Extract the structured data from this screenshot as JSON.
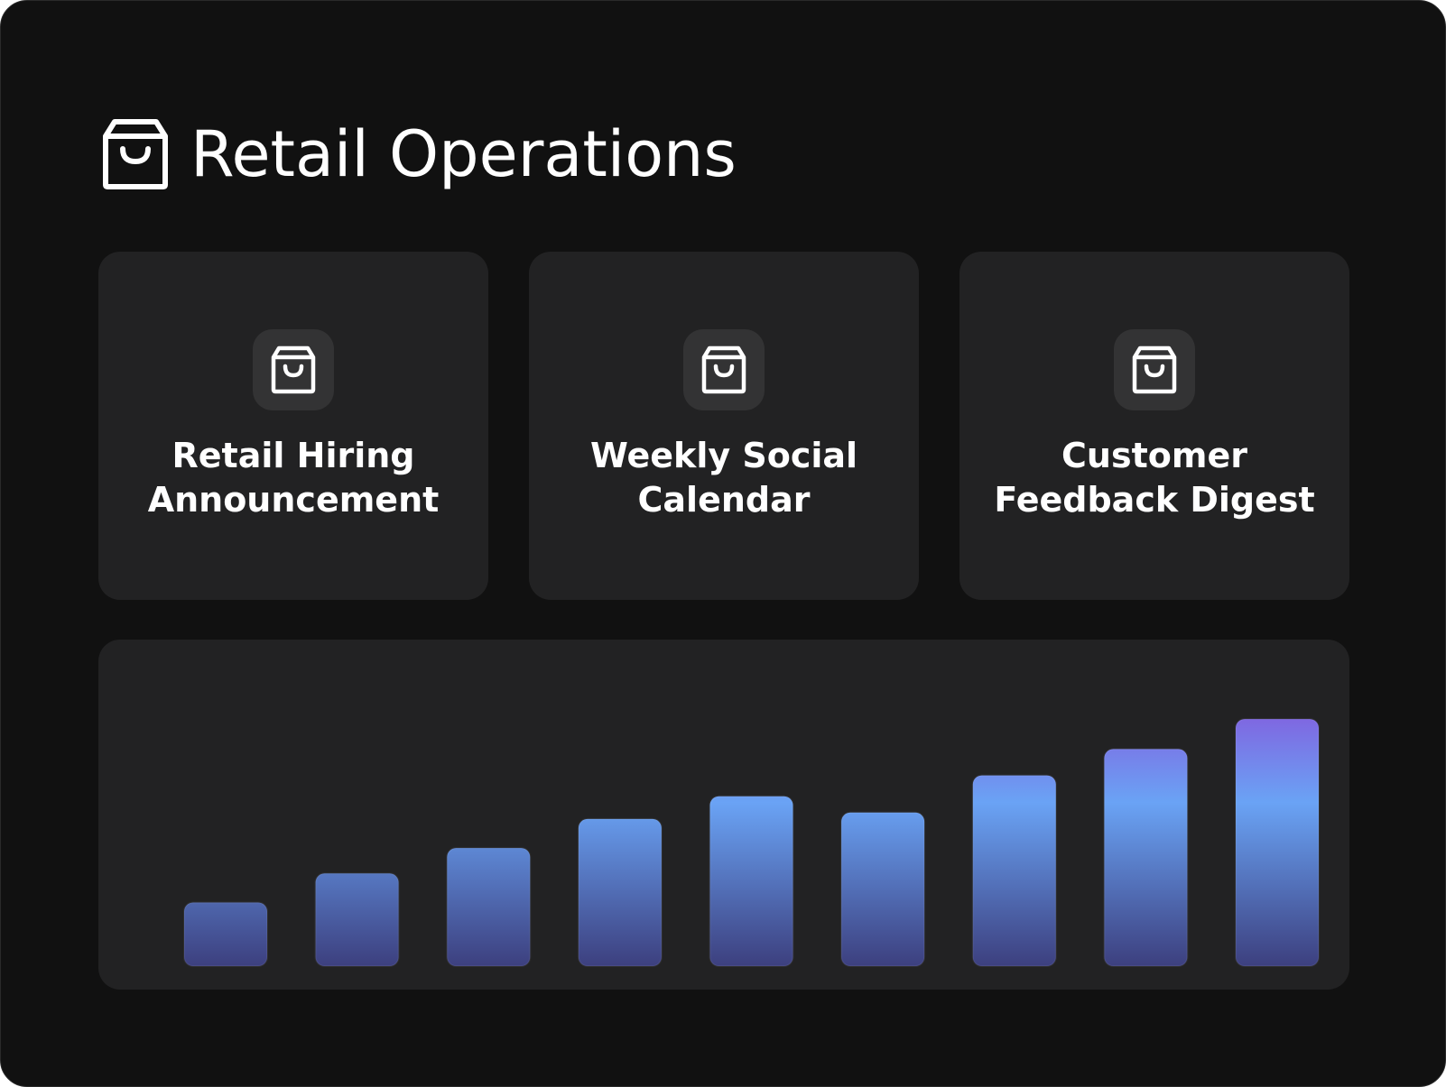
{
  "header": {
    "title": "Retail Operations",
    "icon": "shopping-bag-icon"
  },
  "cards": [
    {
      "label": "Retail Hiring Announcement",
      "icon": "shopping-bag-icon"
    },
    {
      "label": "Weekly Social Calendar",
      "icon": "shopping-bag-icon"
    },
    {
      "label": "Customer Feedback Digest",
      "icon": "shopping-bag-icon"
    }
  ],
  "colors": {
    "background": "#111111",
    "card": "#222223",
    "icon_box": "#333334",
    "text": "#ffffff",
    "bar_blue": "#6aa3f5",
    "bar_purple": "#8064e0",
    "bar_dark": "#3a3a78"
  },
  "chart_data": {
    "type": "bar",
    "categories": [
      "",
      "",
      "",
      "",
      "",
      "",
      "",
      "",
      ""
    ],
    "values": [
      70,
      102,
      130,
      162,
      187,
      169,
      210,
      239,
      272
    ],
    "ylim": [
      0,
      290
    ],
    "grid": false,
    "axes": false
  }
}
